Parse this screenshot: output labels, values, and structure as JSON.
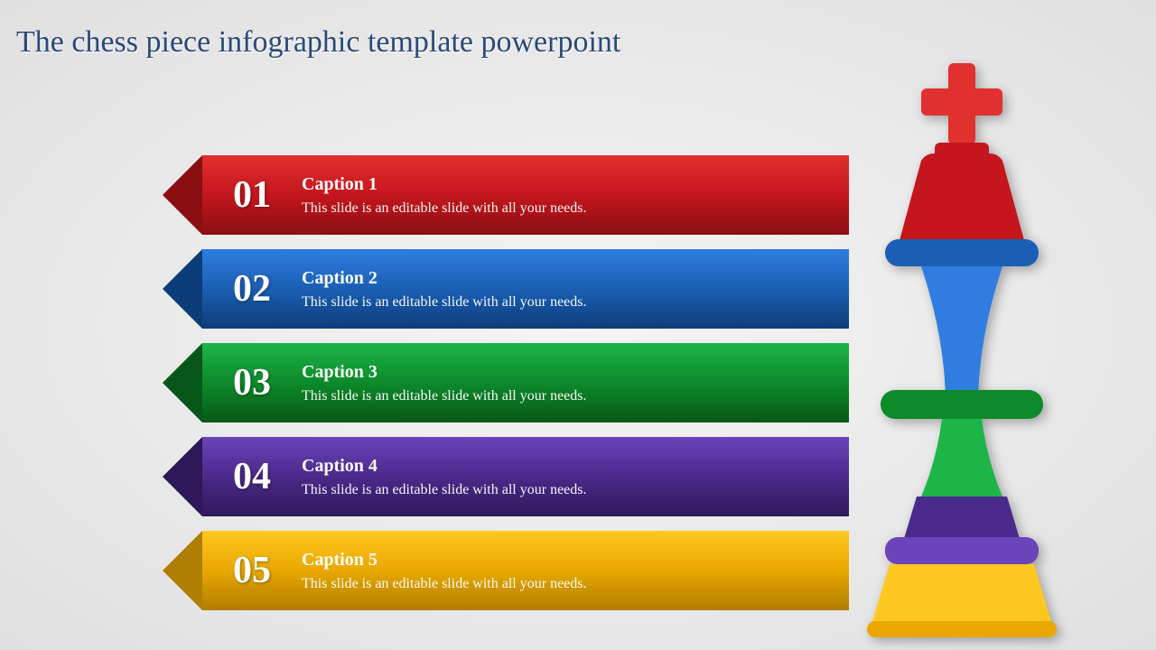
{
  "title": "The chess piece infographic template powerpoint",
  "title_color": "#2a4a7a",
  "title_fontsize": 34,
  "background": {
    "center": "#f5f5f5",
    "edge": "#e0e0e0"
  },
  "bars": [
    {
      "num": "01",
      "caption": "Caption 1",
      "desc": "This slide is an editable slide with all your needs.",
      "color_main": "#c4161c",
      "color_light": "#e03030",
      "color_dark": "#8a0f13"
    },
    {
      "num": "02",
      "caption": "Caption 2",
      "desc": "This slide is an editable slide with all your needs.",
      "color_main": "#1a5fb4",
      "color_light": "#2f7de0",
      "color_dark": "#0d3d78"
    },
    {
      "num": "03",
      "caption": "Caption 3",
      "desc": "This slide is an editable slide with all your needs.",
      "color_main": "#0d8a2a",
      "color_light": "#1db548",
      "color_dark": "#075818"
    },
    {
      "num": "04",
      "caption": "Caption 4",
      "desc": "This slide is an editable slide with all your needs.",
      "color_main": "#4a2a8a",
      "color_light": "#6a44b8",
      "color_dark": "#2e1858"
    },
    {
      "num": "05",
      "caption": "Caption 5",
      "desc": "This slide is an editable slide with all your needs.",
      "color_main": "#e8a800",
      "color_light": "#ffc820",
      "color_dark": "#b07e00"
    }
  ],
  "chess": {
    "segments": [
      {
        "name": "cross",
        "color": "#e03030"
      },
      {
        "name": "crown",
        "color": "#c4161c"
      },
      {
        "name": "collar_top",
        "color": "#1a5fb4"
      },
      {
        "name": "neck",
        "color": "#2f7de0"
      },
      {
        "name": "collar_mid",
        "color": "#0d8a2a"
      },
      {
        "name": "body",
        "color": "#1db548"
      },
      {
        "name": "hip",
        "color": "#4a2a8a"
      },
      {
        "name": "base_top",
        "color": "#6a44b8"
      },
      {
        "name": "base",
        "color": "#ffc820"
      }
    ]
  }
}
